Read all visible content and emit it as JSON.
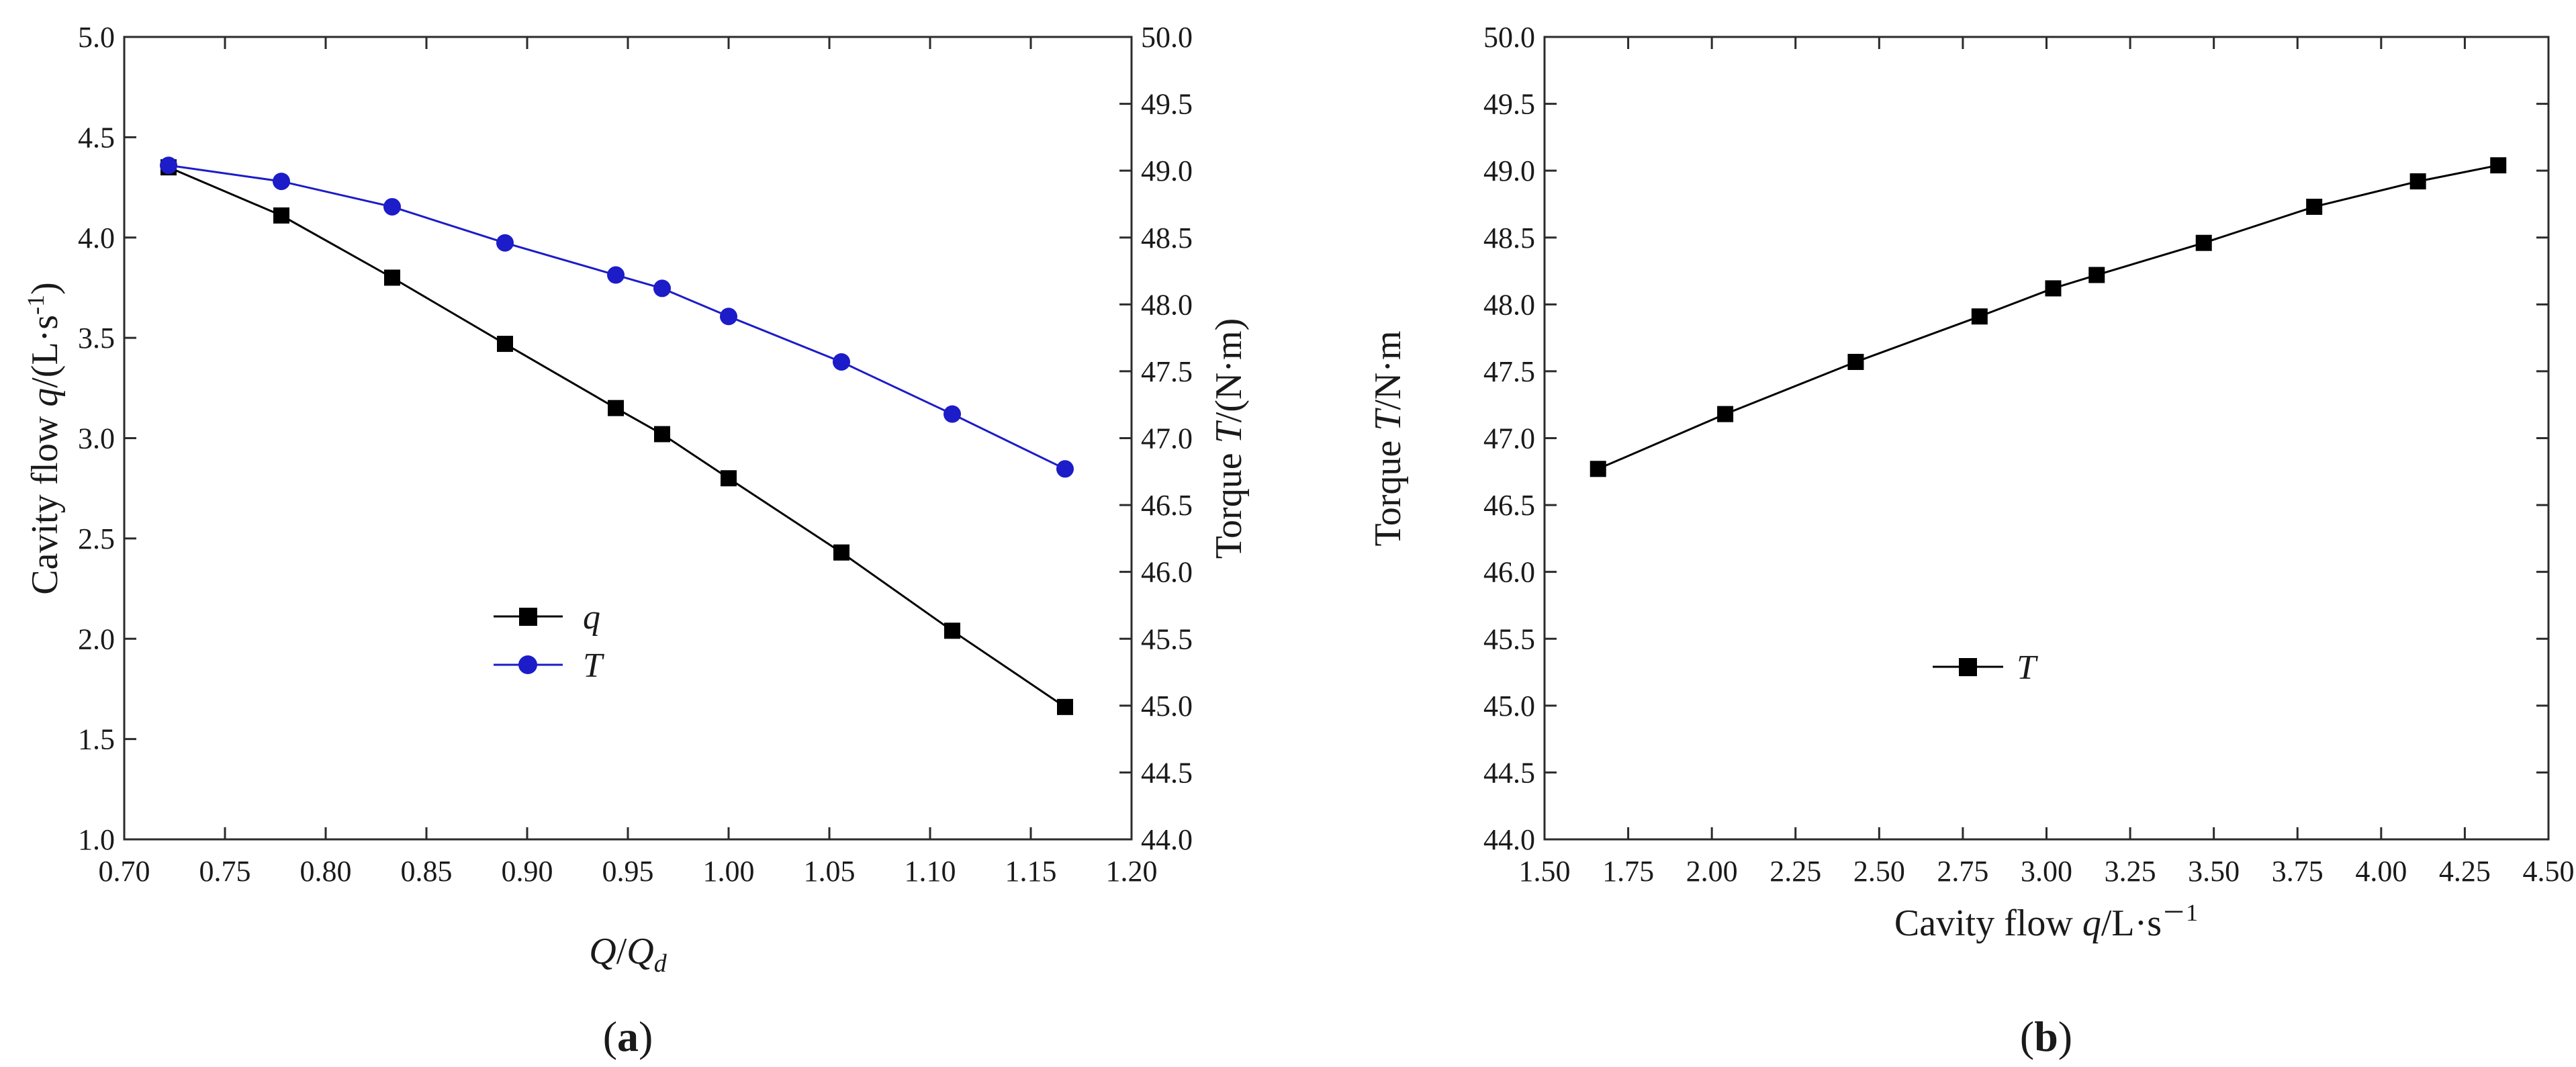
{
  "colors": {
    "black": "#000000",
    "blue": "#1c1cc8",
    "axis": "#2b2b2b"
  },
  "chart_data": [
    {
      "id": "a",
      "type": "line",
      "panel_label_prefix": "(",
      "panel_label_letter": "a",
      "panel_label_suffix": ")",
      "x_label": {
        "main": "Q",
        "sep": "/",
        "main2": "Q",
        "sub": "d"
      },
      "y_left_label": {
        "prefix": "Cavity flow ",
        "var": "q",
        "mid": "/(L·s",
        "sup": "-1",
        "end": ")"
      },
      "y_right_label": {
        "prefix": "Torque ",
        "var": "T",
        "end": "/(N·m)"
      },
      "xlim": [
        0.7,
        1.2
      ],
      "ylim_left": [
        1.0,
        5.0
      ],
      "ylim_right": [
        44.0,
        50.0
      ],
      "x_ticks": [
        "0.70",
        "0.75",
        "0.80",
        "0.85",
        "0.90",
        "0.95",
        "1.00",
        "1.05",
        "1.10",
        "1.15",
        "1.20"
      ],
      "y_left_ticks": [
        "1.0",
        "1.5",
        "2.0",
        "2.5",
        "3.0",
        "3.5",
        "4.0",
        "4.5",
        "5.0"
      ],
      "y_right_ticks": [
        "44.0",
        "44.5",
        "45.0",
        "45.5",
        "46.0",
        "46.5",
        "47.0",
        "47.5",
        "48.0",
        "48.5",
        "49.0",
        "49.5",
        "50.0"
      ],
      "series": [
        {
          "name": "q",
          "axis": "left",
          "marker": "square",
          "color": "#000000",
          "x": [
            0.722,
            0.778,
            0.833,
            0.889,
            0.944,
            0.967,
            1.0,
            1.056,
            1.111,
            1.167
          ],
          "y": [
            4.35,
            4.11,
            3.8,
            3.47,
            3.15,
            3.02,
            2.8,
            2.43,
            2.04,
            1.66
          ]
        },
        {
          "name": "T",
          "axis": "right",
          "marker": "circle",
          "color": "#1c1cc8",
          "x": [
            0.722,
            0.778,
            0.833,
            0.889,
            0.944,
            0.967,
            1.0,
            1.056,
            1.111,
            1.167
          ],
          "y": [
            49.04,
            48.92,
            48.73,
            48.46,
            48.22,
            48.12,
            47.91,
            47.57,
            47.18,
            46.77
          ]
        }
      ],
      "legend": [
        "q",
        "T"
      ]
    },
    {
      "id": "b",
      "type": "line",
      "panel_label_prefix": "(",
      "panel_label_letter": "b",
      "panel_label_suffix": ")",
      "x_label": {
        "prefix": "Cavity flow ",
        "var": "q",
        "mid": "/L·s",
        "sup": "－1"
      },
      "y_label": {
        "prefix": "Torque ",
        "var": "T",
        "end": "/N·m"
      },
      "xlim": [
        1.5,
        4.5
      ],
      "ylim": [
        44.0,
        50.0
      ],
      "x_ticks": [
        "1.50",
        "1.75",
        "2.00",
        "2.25",
        "2.50",
        "2.75",
        "3.00",
        "3.25",
        "3.50",
        "3.75",
        "4.00",
        "4.25",
        "4.50"
      ],
      "y_ticks": [
        "44.0",
        "44.5",
        "45.0",
        "45.5",
        "46.0",
        "46.5",
        "47.0",
        "47.5",
        "48.0",
        "48.5",
        "49.0",
        "49.5",
        "50.0"
      ],
      "series": [
        {
          "name": "T",
          "marker": "square",
          "color": "#000000",
          "x": [
            1.66,
            2.04,
            2.43,
            2.8,
            3.02,
            3.15,
            3.47,
            3.8,
            4.11,
            4.35
          ],
          "y": [
            46.77,
            47.18,
            47.57,
            47.91,
            48.12,
            48.22,
            48.46,
            48.73,
            48.92,
            49.04
          ]
        }
      ],
      "legend": [
        "T"
      ]
    }
  ]
}
